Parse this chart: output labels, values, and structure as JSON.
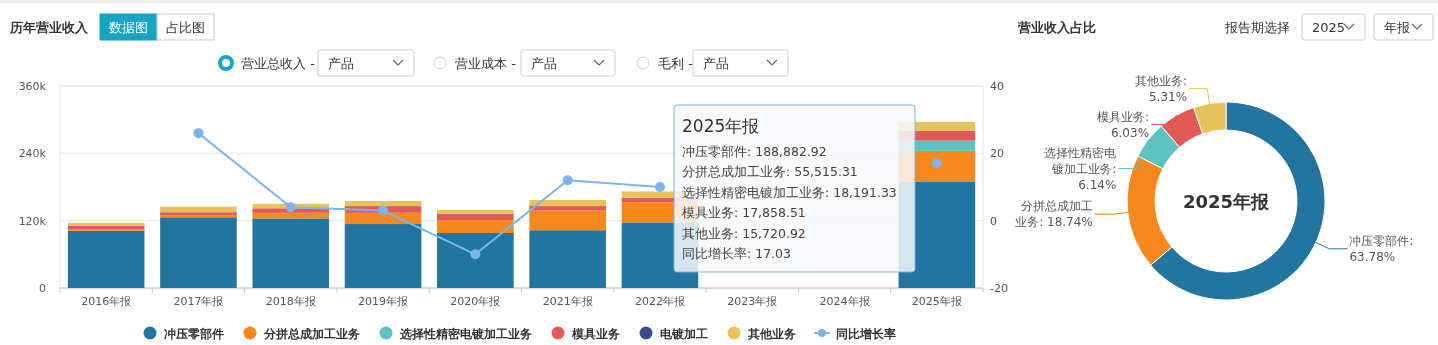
{
  "chart_data": [
    {
      "type": "bar",
      "title": "历年营业收入",
      "stacked": true,
      "grid": "y",
      "legend": "bottom",
      "marker": "circle",
      "categories": [
        "2016年报",
        "2017年报",
        "2018年报",
        "2019年报",
        "2020年报",
        "2021年报",
        "2022年报",
        "2023年报",
        "2024年报",
        "2025年报"
      ],
      "series": [
        {
          "name": "冲压零部件",
          "color": "#22759f",
          "values": [
            102000,
            126000,
            124000,
            114000,
            98000,
            103000,
            117000,
            null,
            null,
            188882.92
          ]
        },
        {
          "name": "分拼总成加工业务",
          "color": "#f5891e",
          "values": [
            2000,
            3000,
            10000,
            20000,
            23000,
            35000,
            36000,
            null,
            null,
            55515.31
          ]
        },
        {
          "name": "选择性精密电镀加工业务",
          "color": "#5cc1bf",
          "values": [
            null,
            null,
            null,
            null,
            null,
            null,
            null,
            null,
            null,
            18191.33
          ]
        },
        {
          "name": "模具业务",
          "color": "#e05a5a",
          "values": [
            7000,
            6000,
            8000,
            12000,
            11000,
            8000,
            8000,
            null,
            null,
            17858.51
          ]
        },
        {
          "name": "电镀加工",
          "color": "#3d4b8c",
          "values": [
            null,
            null,
            null,
            null,
            null,
            null,
            null,
            null,
            null,
            null
          ]
        },
        {
          "name": "其他业务",
          "color": "#e6c35a",
          "values": [
            5000,
            10000,
            8000,
            9000,
            7000,
            11000,
            11000,
            null,
            null,
            15720.92
          ]
        },
        {
          "name": "同比增长率",
          "type": "line",
          "axis": "y2",
          "color": "#7cb5ec",
          "values": [
            null,
            26,
            4,
            3,
            -10,
            12,
            10,
            null,
            null,
            17.03
          ]
        }
      ],
      "ylim": [
        0,
        360000
      ],
      "yticks": [
        {
          "value": 0,
          "label": "0"
        },
        {
          "value": 120000,
          "label": "120k"
        },
        {
          "value": 240000,
          "label": "240k"
        },
        {
          "value": 360000,
          "label": "360k"
        }
      ],
      "y2lim": [
        -20,
        40
      ],
      "y2ticks": [
        -20,
        0,
        20,
        40
      ],
      "annotations": [
        "数据图",
        "占比图",
        "营业总收入 -",
        "产品",
        "营业成本 -",
        "产品",
        "毛利 -",
        "产品",
        "2025年报",
        "冲压零部件: 188,882.92",
        "分拼总成加工业务: 55,515.31",
        "选择性精密电镀加工业务: 18,191.33",
        "模具业务: 17,858.51",
        "其他业务: 15,720.92",
        "同比增长率: 17.03"
      ]
    },
    {
      "type": "donut",
      "title": "营业收入占比",
      "categories": [
        "冲压零部件",
        "分拼总成加工业务",
        "选择性精密电镀加工业务",
        "模具业务",
        "其他业务"
      ],
      "values": [
        63.78,
        18.74,
        6.14,
        6.03,
        5.31
      ],
      "colors": [
        "#22759f",
        "#f5891e",
        "#5cc1bf",
        "#e05a5a",
        "#e6c35a"
      ],
      "value_labels": [
        ": 63.78%",
        ": 18.74%",
        ": 6.14%",
        ": 6.03%",
        ": 5.31%"
      ],
      "annotations": [
        "报告期选择",
        "2025",
        "年报",
        "2025年报"
      ]
    }
  ]
}
